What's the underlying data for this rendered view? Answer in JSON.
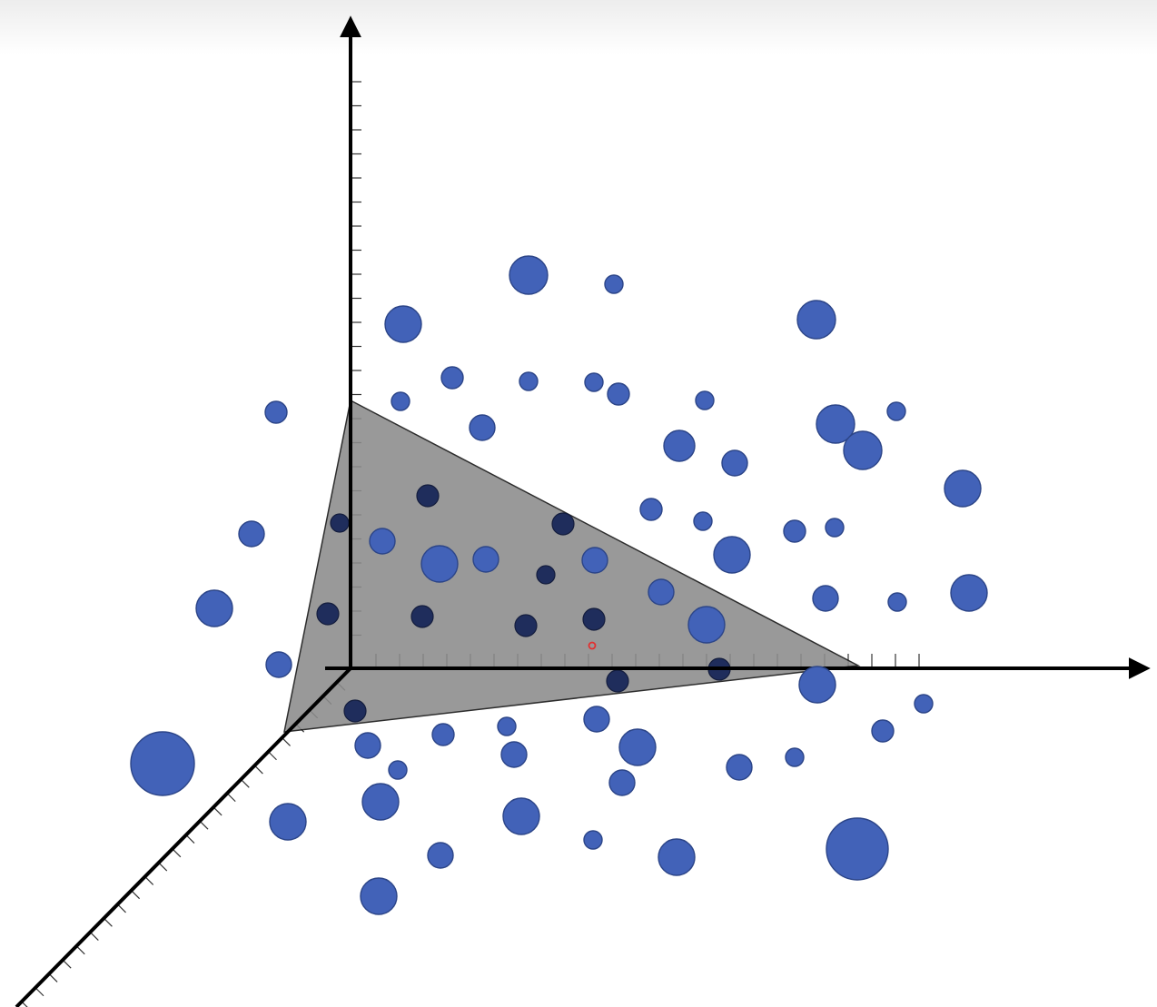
{
  "diagram": {
    "kind": "3d-scatter-with-plane",
    "colors": {
      "background": "#ffffff",
      "axis": "#000000",
      "plane_fill": "#8c8c8c",
      "point_fill": "#4262b8",
      "point_stroke": "#2c4588",
      "point_behind_plane": "#1f2d5c",
      "cursor_marker": "#e23030"
    },
    "point_count": 75,
    "points_in_front_count": 64,
    "points_behind_plane_count": 11,
    "has_cursor_marker": true
  }
}
